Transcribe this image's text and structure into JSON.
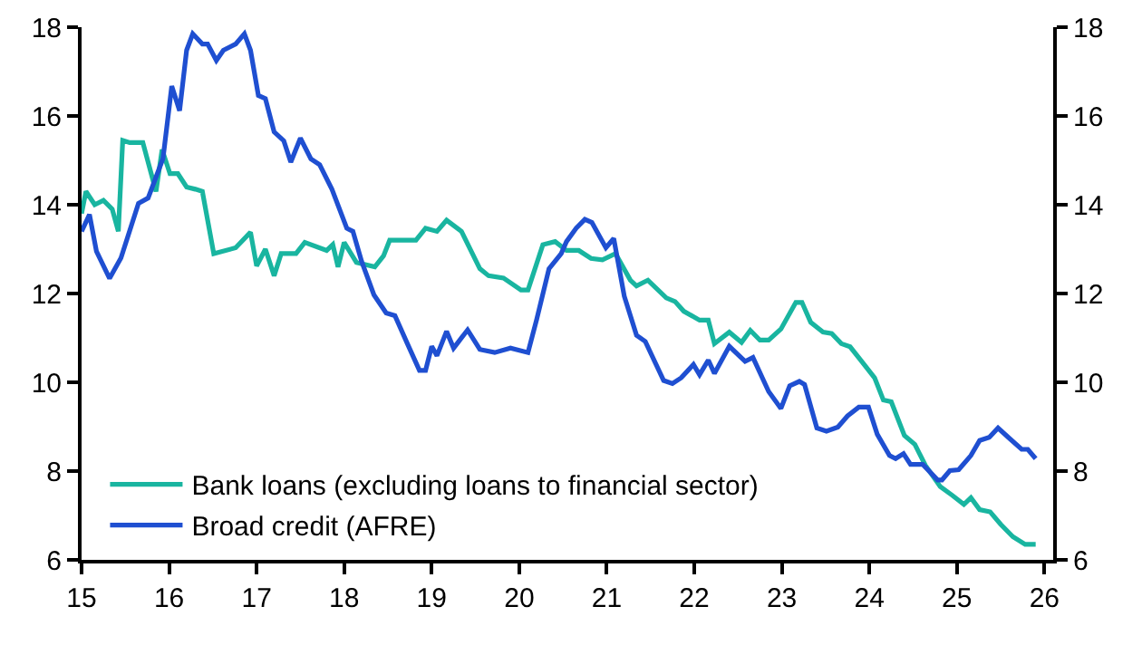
{
  "chart_data": {
    "type": "line",
    "series": [
      {
        "name": "Bank loans (excluding loans to financial sector)",
        "color": "#19b5a0",
        "x": [
          15.0,
          15.05,
          15.15,
          15.25,
          15.35,
          15.42,
          15.47,
          15.55,
          15.7,
          15.85,
          15.92,
          16.01,
          16.1,
          16.2,
          16.3,
          16.38,
          16.51,
          16.76,
          16.93,
          17.0,
          17.1,
          17.2,
          17.28,
          17.45,
          17.55,
          17.8,
          17.87,
          17.93,
          18.0,
          18.14,
          18.35,
          18.45,
          18.52,
          18.82,
          18.93,
          19.06,
          19.17,
          19.34,
          19.55,
          19.65,
          19.82,
          20.02,
          20.1,
          20.27,
          20.41,
          20.54,
          20.68,
          20.82,
          20.95,
          21.1,
          21.27,
          21.34,
          21.47,
          21.68,
          21.78,
          21.88,
          22.06,
          22.16,
          22.23,
          22.4,
          22.54,
          22.64,
          22.75,
          22.85,
          22.99,
          23.16,
          23.23,
          23.33,
          23.47,
          23.57,
          23.68,
          23.78,
          23.92,
          24.06,
          24.16,
          24.25,
          24.4,
          24.52,
          24.64,
          24.81,
          24.95,
          25.08,
          25.16,
          25.26,
          25.38,
          25.5,
          25.64,
          25.78,
          25.9
        ],
        "values": [
          13.8,
          14.3,
          14.0,
          14.1,
          13.9,
          13.4,
          15.45,
          15.4,
          15.4,
          14.3,
          15.24,
          14.7,
          14.7,
          14.4,
          14.35,
          14.3,
          12.9,
          13.03,
          13.38,
          12.62,
          13.0,
          12.4,
          12.9,
          12.9,
          13.15,
          12.97,
          13.1,
          12.6,
          13.15,
          12.7,
          12.6,
          12.85,
          13.2,
          13.2,
          13.47,
          13.4,
          13.65,
          13.4,
          12.56,
          12.4,
          12.35,
          12.08,
          12.08,
          13.1,
          13.17,
          12.97,
          12.97,
          12.79,
          12.76,
          12.9,
          12.3,
          12.17,
          12.3,
          11.9,
          11.82,
          11.6,
          11.4,
          11.4,
          10.87,
          11.13,
          10.9,
          11.17,
          10.95,
          10.95,
          11.2,
          11.8,
          11.8,
          11.35,
          11.13,
          11.1,
          10.87,
          10.8,
          10.45,
          10.1,
          9.6,
          9.56,
          8.8,
          8.6,
          8.13,
          7.65,
          7.45,
          7.25,
          7.4,
          7.13,
          7.08,
          6.8,
          6.52,
          6.35,
          6.35
        ]
      },
      {
        "name": "Broad credit (AFRE)",
        "color": "#1f4fd1",
        "x": [
          15.0,
          15.09,
          15.17,
          15.32,
          15.45,
          15.65,
          15.76,
          15.93,
          16.03,
          16.12,
          16.2,
          16.27,
          16.38,
          16.44,
          16.54,
          16.62,
          16.76,
          16.86,
          16.93,
          17.02,
          17.1,
          17.2,
          17.31,
          17.39,
          17.5,
          17.62,
          17.72,
          17.86,
          18.03,
          18.1,
          18.2,
          18.34,
          18.48,
          18.58,
          18.72,
          18.86,
          18.93,
          19.0,
          19.06,
          19.17,
          19.25,
          19.41,
          19.55,
          19.72,
          19.9,
          20.1,
          20.2,
          20.34,
          20.48,
          20.54,
          20.65,
          20.75,
          20.83,
          20.99,
          21.08,
          21.2,
          21.34,
          21.44,
          21.65,
          21.75,
          21.85,
          21.99,
          22.06,
          22.16,
          22.23,
          22.4,
          22.58,
          22.67,
          22.85,
          22.99,
          23.09,
          23.2,
          23.26,
          23.4,
          23.51,
          23.64,
          23.75,
          23.88,
          23.99,
          24.09,
          24.23,
          24.3,
          24.39,
          24.47,
          24.61,
          24.78,
          24.83,
          24.92,
          25.02,
          25.16,
          25.26,
          25.37,
          25.47,
          25.61,
          25.74,
          25.81,
          25.9
        ],
        "values": [
          13.4,
          13.78,
          12.95,
          12.34,
          12.8,
          14.03,
          14.15,
          15.04,
          16.67,
          16.12,
          17.48,
          17.85,
          17.62,
          17.62,
          17.25,
          17.48,
          17.62,
          17.85,
          17.48,
          16.46,
          16.39,
          15.64,
          15.44,
          14.96,
          15.5,
          15.03,
          14.9,
          14.35,
          13.47,
          13.4,
          12.72,
          11.97,
          11.56,
          11.5,
          10.88,
          10.27,
          10.27,
          10.81,
          10.6,
          11.15,
          10.77,
          11.18,
          10.74,
          10.67,
          10.77,
          10.67,
          11.42,
          12.56,
          12.9,
          13.17,
          13.47,
          13.67,
          13.6,
          13.03,
          13.24,
          11.94,
          11.06,
          10.92,
          10.04,
          9.97,
          10.1,
          10.4,
          10.17,
          10.5,
          10.2,
          10.81,
          10.47,
          10.56,
          9.79,
          9.41,
          9.92,
          10.02,
          9.95,
          8.97,
          8.9,
          8.99,
          9.24,
          9.44,
          9.44,
          8.83,
          8.35,
          8.28,
          8.39,
          8.15,
          8.15,
          7.8,
          7.8,
          8.01,
          8.03,
          8.35,
          8.69,
          8.76,
          8.97,
          8.72,
          8.49,
          8.49,
          8.28
        ]
      }
    ],
    "xlim": [
      15,
      26.1
    ],
    "xticks": [
      15,
      16,
      17,
      18,
      19,
      20,
      21,
      22,
      23,
      24,
      25,
      26
    ],
    "ylim": [
      6,
      18
    ],
    "yticks": [
      6,
      8,
      10,
      12,
      14,
      16,
      18
    ],
    "y2lim": [
      6,
      18
    ],
    "y2ticks": [
      6,
      8,
      10,
      12,
      14,
      16,
      18
    ],
    "grid": false,
    "legend": "bottom left",
    "marker": "none",
    "line_style": "solid"
  }
}
